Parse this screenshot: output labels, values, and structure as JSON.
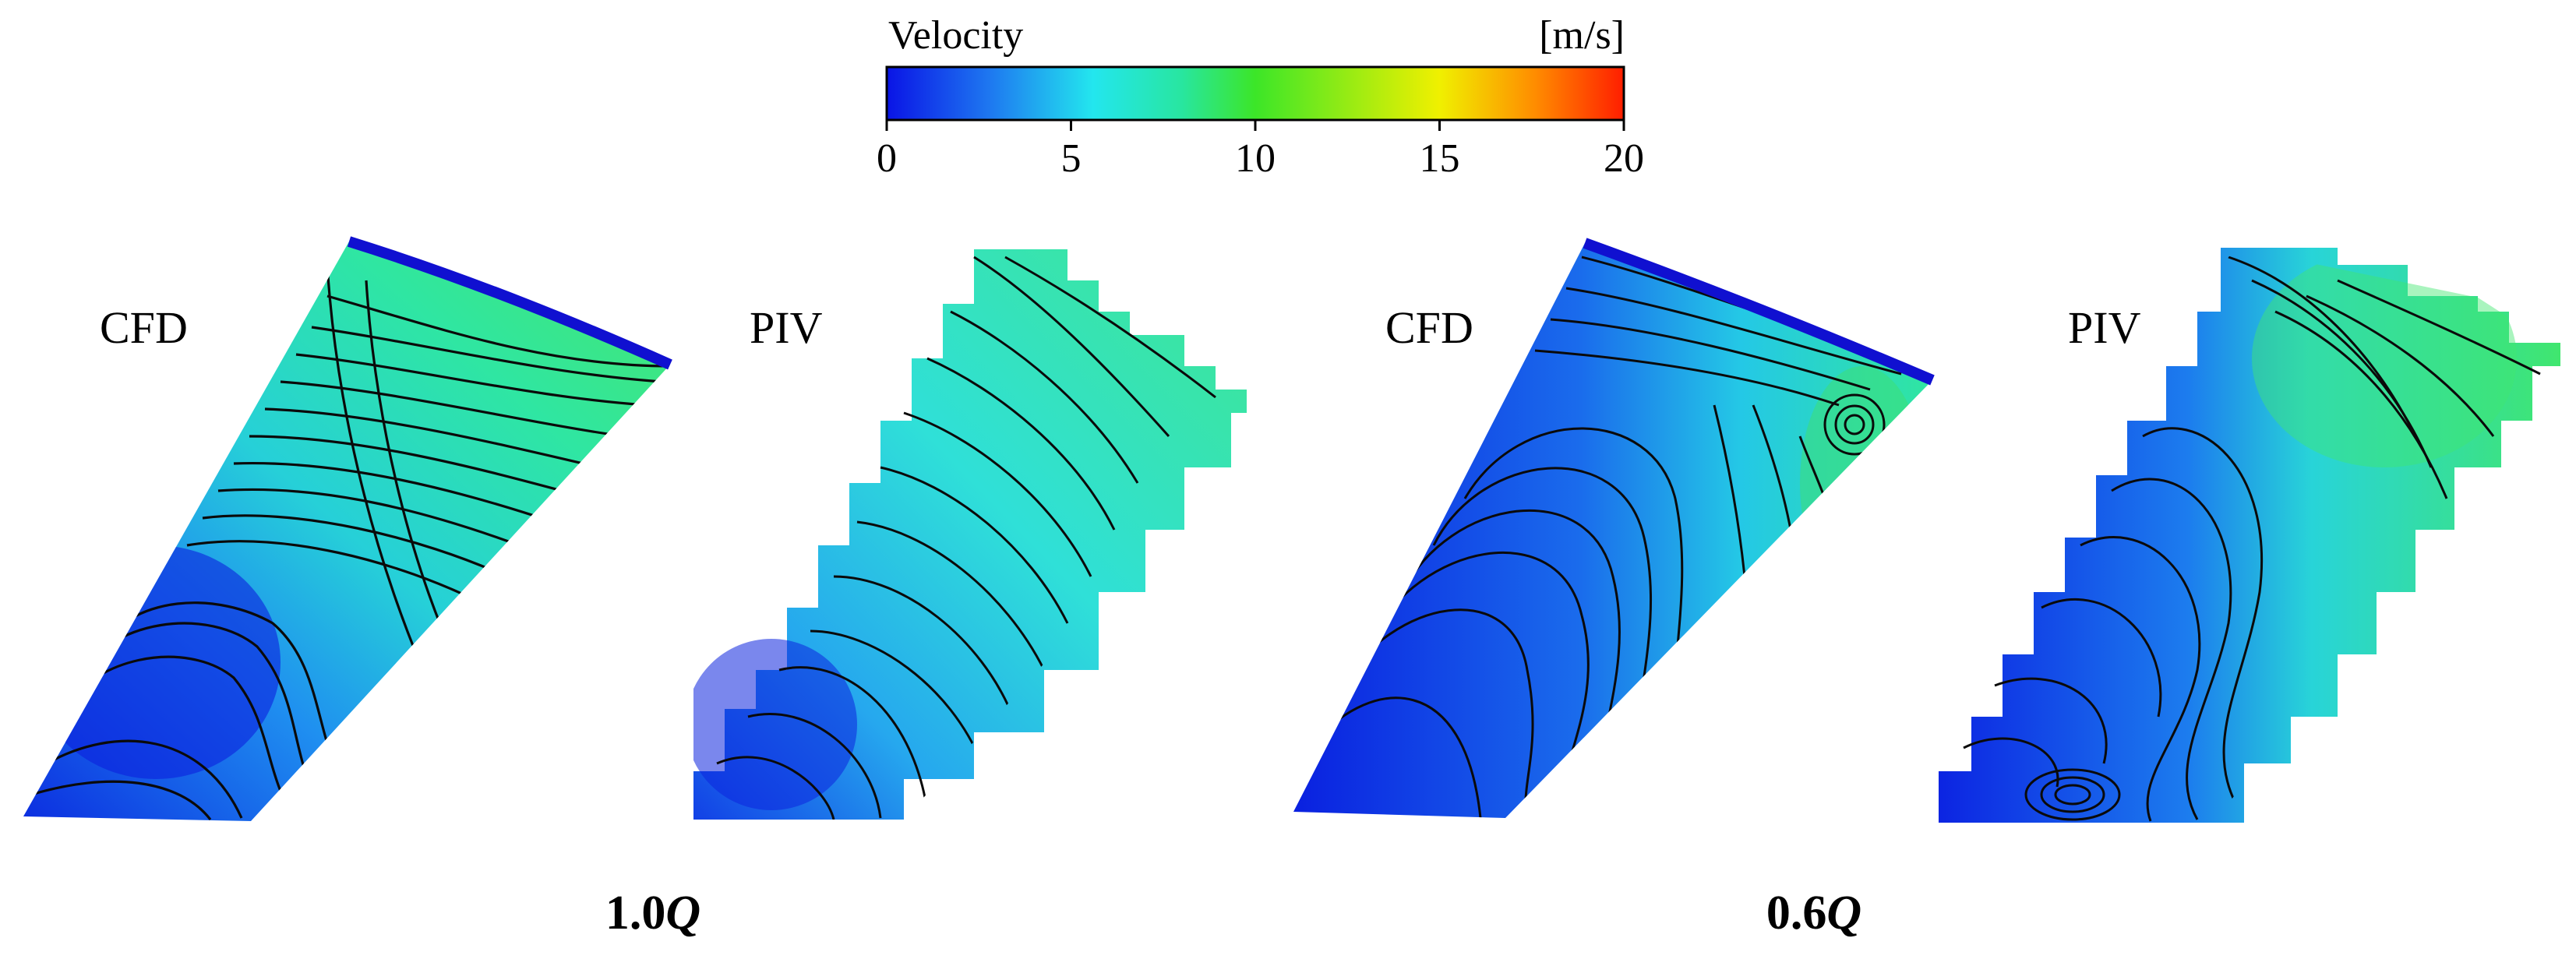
{
  "colorbar": {
    "title": "Velocity",
    "unit": "[m/s]",
    "min": 0,
    "max": 20,
    "ticks": [
      "0",
      "5",
      "10",
      "15",
      "20"
    ],
    "colors": [
      "#0a14e6",
      "#1e78f0",
      "#23e6ee",
      "#28e6a0",
      "#3ce628",
      "#f0f000",
      "#ff8c00",
      "#ff1e00"
    ]
  },
  "panels": [
    {
      "label": "CFD",
      "method": "simulation",
      "condition": "1.0Q"
    },
    {
      "label": "PIV",
      "method": "measurement",
      "condition": "1.0Q"
    },
    {
      "label": "CFD",
      "method": "simulation",
      "condition": "0.6Q"
    },
    {
      "label": "PIV",
      "method": "measurement",
      "condition": "0.6Q"
    }
  ],
  "conditions": [
    {
      "value": "1.0",
      "symbol": "Q"
    },
    {
      "value": "0.6",
      "symbol": "Q"
    }
  ]
}
